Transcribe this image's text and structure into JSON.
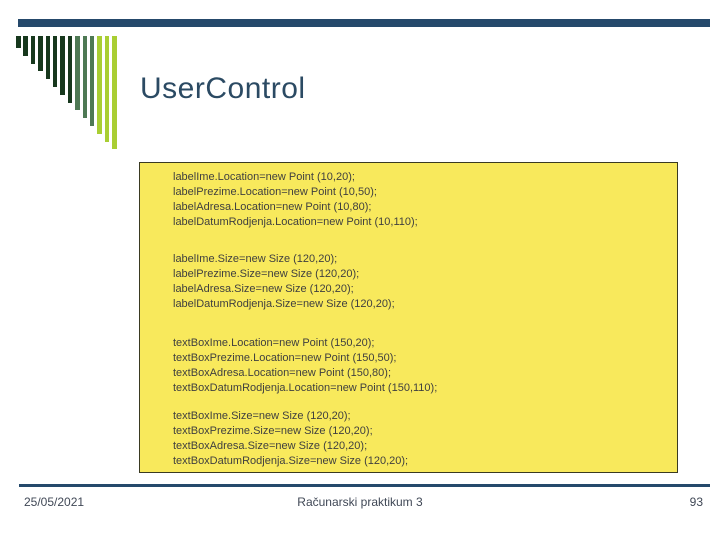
{
  "title": "UserControl",
  "colors": {
    "top_bar": "#25496b",
    "title_text": "#2b4a63",
    "box_fill": "#f8e95c",
    "box_border": "#3a3a22",
    "code_text": "#3f3f3f",
    "footer_rule": "#25496b",
    "footer_text": "#404856",
    "logo_dark_green": "#17381d",
    "logo_mid_green": "#4e7954",
    "logo_lime_green": "#a9ce33"
  },
  "logo": {
    "bar_colors": [
      "#17381d",
      "#17381d",
      "#17381d",
      "#17381d",
      "#17381d",
      "#17381d",
      "#17381d",
      "#17381d",
      "#4e7954",
      "#4e7954",
      "#4e7954",
      "#a9ce33",
      "#a9ce33",
      "#a9ce33"
    ]
  },
  "code": {
    "blocks": [
      {
        "lines": [
          "labelIme.Location=new Point (10,20);",
          "labelPrezime.Location=new Point (10,50);",
          "labelAdresa.Location=new Point (10,80);",
          "labelDatumRodjenja.Location=new Point (10,110);"
        ]
      },
      {
        "lines": [
          "labelIme.Size=new Size (120,20);",
          "labelPrezime.Size=new Size (120,20);",
          "labelAdresa.Size=new Size (120,20);",
          "labelDatumRodjenja.Size=new Size (120,20);"
        ]
      },
      {
        "lines": [
          "textBoxIme.Location=new Point (150,20);",
          "textBoxPrezime.Location=new Point (150,50);",
          "textBoxAdresa.Location=new Point (150,80);",
          "textBoxDatumRodjenja.Location=new Point (150,110);"
        ]
      },
      {
        "lines": [
          "textBoxIme.Size=new Size (120,20);",
          "textBoxPrezime.Size=new Size (120,20);",
          "textBoxAdresa.Size=new Size (120,20);",
          "textBoxDatumRodjenja.Size=new Size (120,20);"
        ]
      }
    ]
  },
  "footer": {
    "date": "25/05/2021",
    "course": "Računarski praktikum 3",
    "page": "93"
  }
}
